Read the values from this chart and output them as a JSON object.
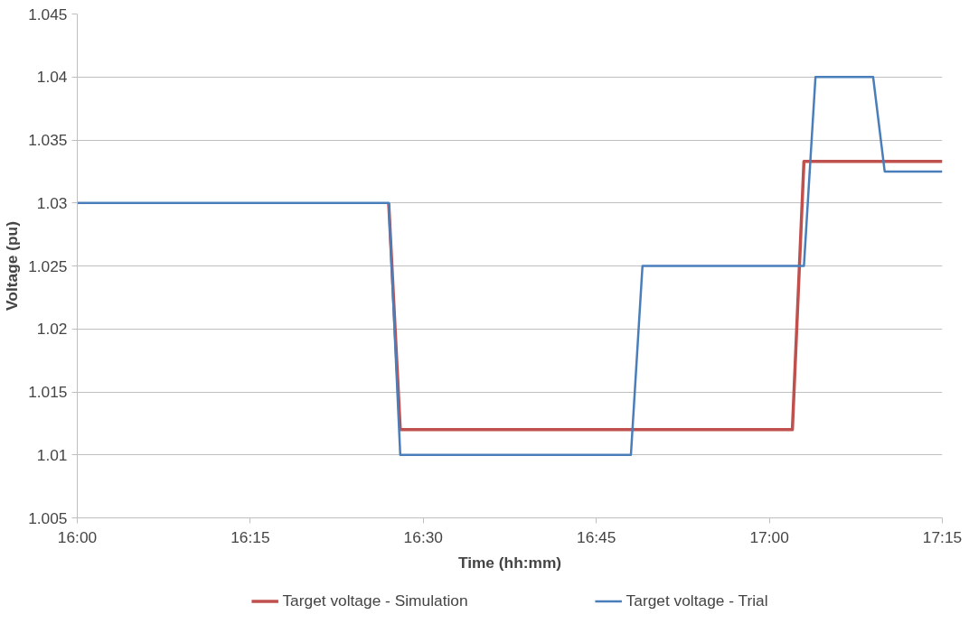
{
  "chart_data": {
    "type": "line",
    "xlabel": "Time (hh:mm)",
    "ylabel": "Voltage (pu)",
    "xlim": [
      16.0,
      17.25
    ],
    "xticks": [
      {
        "value": 16.0,
        "label": "16:00"
      },
      {
        "value": 16.25,
        "label": "16:15"
      },
      {
        "value": 16.5,
        "label": "16:30"
      },
      {
        "value": 16.75,
        "label": "16:45"
      },
      {
        "value": 17.0,
        "label": "17:00"
      },
      {
        "value": 17.25,
        "label": "17:15"
      }
    ],
    "ylim": [
      1.005,
      1.045
    ],
    "yticks": [
      1.005,
      1.01,
      1.015,
      1.02,
      1.025,
      1.03,
      1.035,
      1.04,
      1.045
    ],
    "grid": "y",
    "legend": "bottom",
    "marker": "none",
    "line_style": "solid",
    "series": [
      {
        "name": "Target voltage - Simulation",
        "color": "#c0504d",
        "x": [
          16.45,
          16.4667,
          17.0333,
          17.05,
          17.25
        ],
        "values": [
          1.03,
          1.012,
          1.012,
          1.0333,
          1.0333
        ]
      },
      {
        "name": "Target voltage - Trial",
        "color": "#4a7ebb",
        "x": [
          16.0,
          16.45,
          16.4667,
          16.8,
          16.8167,
          17.05,
          17.0667,
          17.15,
          17.1667,
          17.25
        ],
        "values": [
          1.03,
          1.03,
          1.01,
          1.01,
          1.025,
          1.025,
          1.04,
          1.04,
          1.0325,
          1.0325
        ]
      }
    ]
  }
}
